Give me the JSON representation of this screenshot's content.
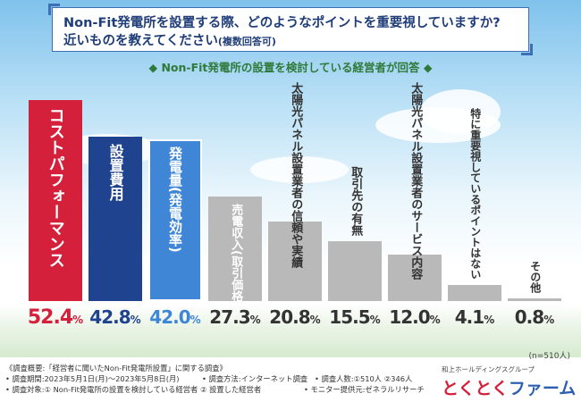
{
  "question": {
    "line1": "Non-Fit発電所を設置する際、どのようなポイントを重要視していますか?",
    "line2_main": "近いものを教えてください",
    "line2_note": "(複数回答可)"
  },
  "subtitle": "◆ Non-Fit発電所の設置を検討している経営者が回答 ◆",
  "sample_size": "(n=510人)",
  "colors": {
    "red": "#d5203c",
    "navy": "#20438f",
    "blue": "#3f86d6",
    "gray": "#b9b9b9",
    "sky": "#7fc2ec"
  },
  "chart_data": {
    "type": "bar",
    "title": "Non-Fit発電所を設置する際、どのようなポイントを重要視していますか?",
    "ylabel": "%",
    "ylim": [
      0,
      55
    ],
    "categories": [
      "コストパフォーマンス",
      "設置費用",
      "発電量(発電効率)",
      "売電収入(取引価格)",
      "太陽光パネル設置業者の信頼や実績",
      "取引先の有無",
      "太陽光パネル設置業者のサービス内容",
      "特に重要視しているポイントはない",
      "その他"
    ],
    "values": [
      52.4,
      42.8,
      42.0,
      27.3,
      20.8,
      15.5,
      12.0,
      4.1,
      0.8
    ],
    "value_labels": [
      "52.4%",
      "42.8%",
      "42.0%",
      "27.3%",
      "20.8%",
      "15.5%",
      "12.0%",
      "4.1%",
      "0.8%"
    ]
  },
  "footer": {
    "survey_title": "《調査概要:「経営者に聞いたNon-Fit発電所設置」に関する調査》",
    "period": "• 調査期間:2023年5月1日(月)〜2023年5月8日(月)",
    "method": "• 調査方法:インターネット調査",
    "count": "• 調査人数:①510人 ②346人",
    "target": "• 調査対象:① Non-Fit発電所の設置を検討している経営者 ② 設置した経営者",
    "provider": "• モニター提供元:ゼネラルリサーチ",
    "brand_sub": "和上ホールディングスグループ",
    "brand_part1": "とくとく",
    "brand_part2": "ファーム"
  }
}
